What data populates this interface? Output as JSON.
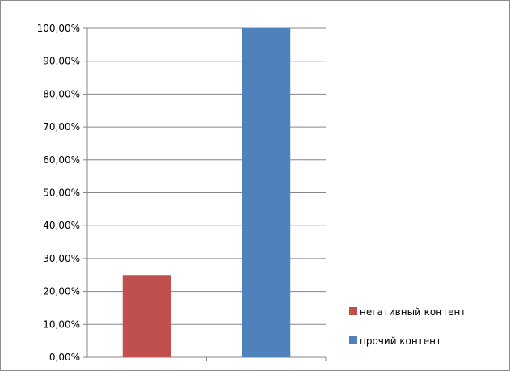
{
  "chart_data": {
    "type": "bar",
    "categories": [
      "негативный контент",
      "прочий контент"
    ],
    "values": [
      25,
      100
    ],
    "colors": [
      "#c0504d",
      "#4f81bd"
    ],
    "ylim": [
      0,
      100
    ],
    "yticks": [
      "0,00%",
      "10,00%",
      "20,00%",
      "30,00%",
      "40,00%",
      "50,00%",
      "60,00%",
      "70,00%",
      "80,00%",
      "90,00%",
      "100,00%"
    ],
    "grid": true,
    "legend_position": "bottom-right",
    "legend": [
      "негативный контент",
      "прочий контент"
    ]
  }
}
